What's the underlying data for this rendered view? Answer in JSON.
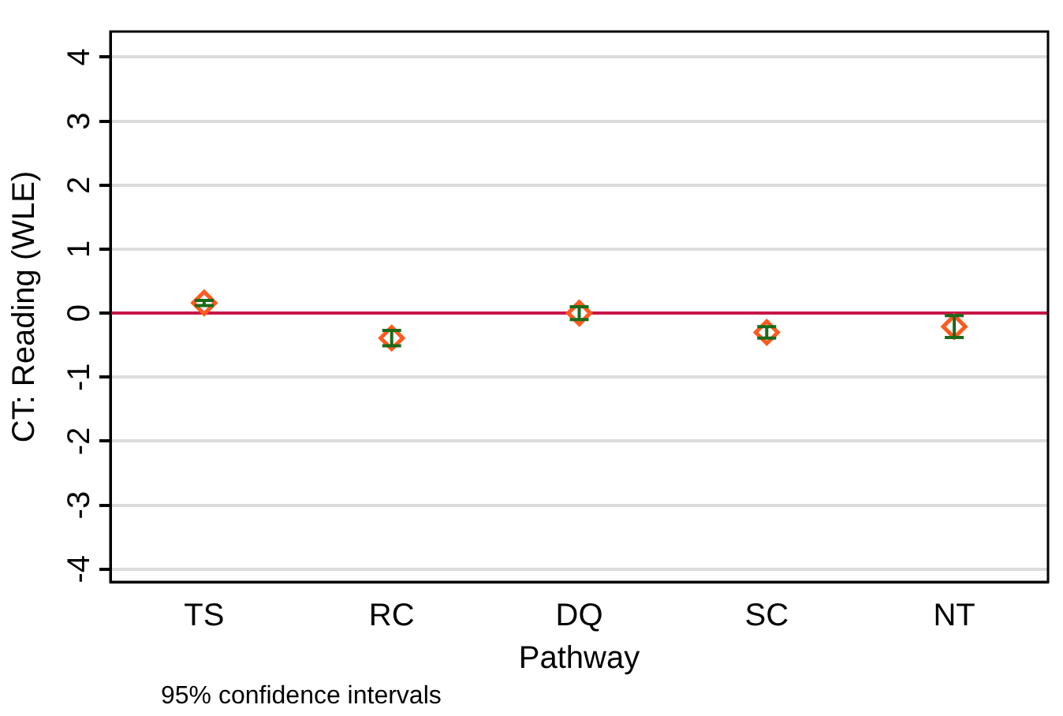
{
  "chart_data": {
    "type": "scatter",
    "xlabel": "Pathway",
    "ylabel": "CT: Reading (WLE)",
    "categories": [
      "TS",
      "RC",
      "DQ",
      "SC",
      "NT"
    ],
    "series": [
      {
        "color": "#ff5a1f",
        "values": [
          0.16,
          -0.39,
          0.0,
          -0.3,
          -0.21
        ],
        "errors": [
          0.04,
          0.12,
          0.1,
          0.09,
          0.17
        ]
      }
    ],
    "ylim": [
      -4.2,
      4.4
    ],
    "yticks": [
      -4,
      -3,
      -2,
      -1,
      0,
      1,
      2,
      3,
      4
    ],
    "grid": "y",
    "marker": "diamond",
    "legend": false,
    "ref_lines": [
      {
        "axis": "y",
        "value": 0,
        "color": "#c8174a"
      }
    ],
    "annotations": [
      "95% confidence intervals"
    ]
  }
}
